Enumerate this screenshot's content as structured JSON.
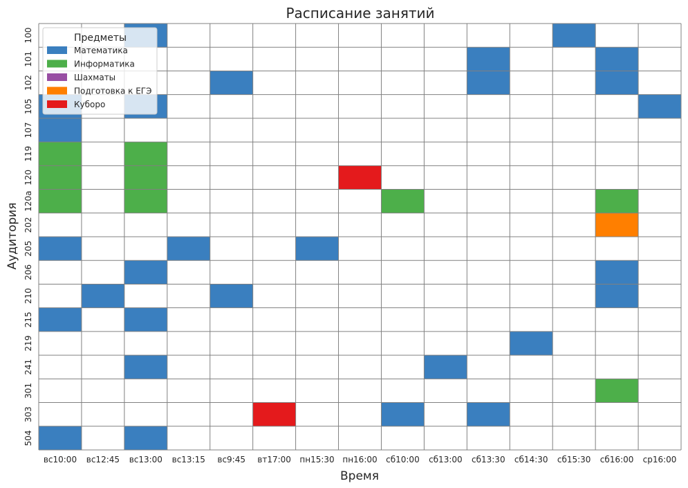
{
  "chart_data": {
    "type": "heatmap",
    "title": "Расписание занятий",
    "xlabel": "Время",
    "ylabel": "Аудитория",
    "grid": true,
    "legend_placement": "top-left",
    "legend": {
      "title": "Предметы",
      "items": [
        {
          "label": "Математика",
          "color": "#3a7fbf"
        },
        {
          "label": "Информатика",
          "color": "#4daf4a"
        },
        {
          "label": "Шахматы",
          "color": "#984ea3"
        },
        {
          "label": "Подготовка к ЕГЭ",
          "color": "#ff7f00"
        },
        {
          "label": "Куборо",
          "color": "#e41a1c"
        }
      ]
    },
    "x_categories": [
      "вс10:00",
      "вс12:45",
      "вс13:00",
      "вс13:15",
      "вс9:45",
      "вт17:00",
      "пн15:30",
      "пн16:00",
      "сб10:00",
      "сб13:00",
      "сб13:30",
      "сб14:30",
      "сб15:30",
      "сб16:00",
      "ср16:00"
    ],
    "y_categories": [
      "100",
      "101",
      "102",
      "105",
      "107",
      "119",
      "120",
      "120a",
      "202",
      "205",
      "206",
      "210",
      "215",
      "219",
      "241",
      "301",
      "303",
      "504"
    ],
    "cells": [
      {
        "room": "100",
        "time": "вс13:00",
        "subject": "Математика"
      },
      {
        "room": "100",
        "time": "сб15:30",
        "subject": "Математика"
      },
      {
        "room": "101",
        "time": "сб13:30",
        "subject": "Математика"
      },
      {
        "room": "101",
        "time": "сб16:00",
        "subject": "Математика"
      },
      {
        "room": "102",
        "time": "вс9:45",
        "subject": "Математика"
      },
      {
        "room": "102",
        "time": "сб13:30",
        "subject": "Математика"
      },
      {
        "room": "102",
        "time": "сб16:00",
        "subject": "Математика"
      },
      {
        "room": "105",
        "time": "вс10:00",
        "subject": "Математика"
      },
      {
        "room": "105",
        "time": "вс13:00",
        "subject": "Математика"
      },
      {
        "room": "105",
        "time": "ср16:00",
        "subject": "Математика"
      },
      {
        "room": "107",
        "time": "вс10:00",
        "subject": "Математика"
      },
      {
        "room": "119",
        "time": "вс10:00",
        "subject": "Информатика"
      },
      {
        "room": "119",
        "time": "вс13:00",
        "subject": "Информатика"
      },
      {
        "room": "120",
        "time": "вс10:00",
        "subject": "Информатика"
      },
      {
        "room": "120",
        "time": "вс13:00",
        "subject": "Информатика"
      },
      {
        "room": "120",
        "time": "пн16:00",
        "subject": "Куборо"
      },
      {
        "room": "120a",
        "time": "вс10:00",
        "subject": "Информатика"
      },
      {
        "room": "120a",
        "time": "вс13:00",
        "subject": "Информатика"
      },
      {
        "room": "120a",
        "time": "сб10:00",
        "subject": "Информатика"
      },
      {
        "room": "120a",
        "time": "сб16:00",
        "subject": "Информатика"
      },
      {
        "room": "202",
        "time": "сб16:00",
        "subject": "Подготовка к ЕГЭ"
      },
      {
        "room": "205",
        "time": "вс10:00",
        "subject": "Математика"
      },
      {
        "room": "205",
        "time": "вс13:15",
        "subject": "Математика"
      },
      {
        "room": "205",
        "time": "пн15:30",
        "subject": "Математика"
      },
      {
        "room": "206",
        "time": "вс13:00",
        "subject": "Математика"
      },
      {
        "room": "206",
        "time": "сб16:00",
        "subject": "Математика"
      },
      {
        "room": "210",
        "time": "вс12:45",
        "subject": "Математика"
      },
      {
        "room": "210",
        "time": "вс9:45",
        "subject": "Математика"
      },
      {
        "room": "210",
        "time": "сб16:00",
        "subject": "Математика"
      },
      {
        "room": "215",
        "time": "вс10:00",
        "subject": "Математика"
      },
      {
        "room": "215",
        "time": "вс13:00",
        "subject": "Математика"
      },
      {
        "room": "219",
        "time": "сб14:30",
        "subject": "Математика"
      },
      {
        "room": "241",
        "time": "вс13:00",
        "subject": "Математика"
      },
      {
        "room": "241",
        "time": "сб13:00",
        "subject": "Математика"
      },
      {
        "room": "301",
        "time": "сб16:00",
        "subject": "Информатика"
      },
      {
        "room": "303",
        "time": "вт17:00",
        "subject": "Куборо"
      },
      {
        "room": "303",
        "time": "сб10:00",
        "subject": "Математика"
      },
      {
        "room": "303",
        "time": "сб13:30",
        "subject": "Математика"
      },
      {
        "room": "504",
        "time": "вс10:00",
        "subject": "Математика"
      },
      {
        "room": "504",
        "time": "вс13:00",
        "subject": "Математика"
      }
    ]
  }
}
